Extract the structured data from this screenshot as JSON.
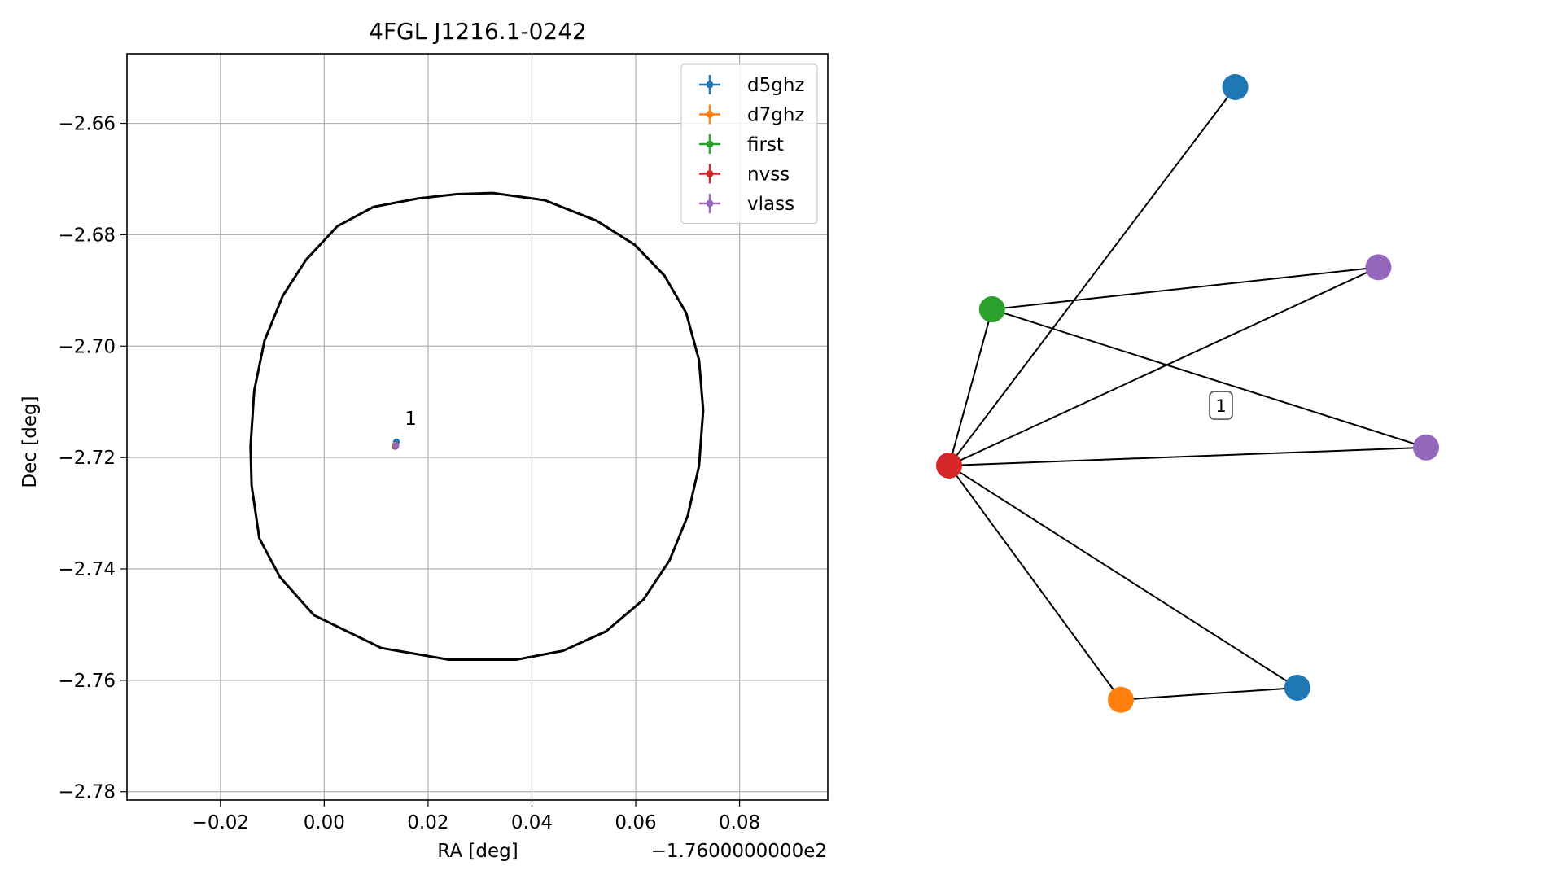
{
  "chart_data": [
    {
      "type": "scatter",
      "title": "4FGL J1216.1-0242",
      "xlabel": "RA [deg]",
      "ylabel": "Dec [deg]",
      "x_offset_label": "−1.7600000000e2",
      "xlim": [
        -0.038,
        0.097
      ],
      "ylim": [
        -2.7815,
        -2.6475
      ],
      "x_ticks": [
        -0.02,
        0.0,
        0.02,
        0.04,
        0.06,
        0.08
      ],
      "x_tick_labels": [
        "−0.02",
        "0.00",
        "0.02",
        "0.04",
        "0.06",
        "0.08"
      ],
      "y_ticks": [
        -2.66,
        -2.68,
        -2.7,
        -2.72,
        -2.74,
        -2.76,
        -2.78
      ],
      "y_tick_labels": [
        "−2.66",
        "−2.68",
        "−2.70",
        "−2.72",
        "−2.74",
        "−2.76",
        "−2.78"
      ],
      "grid": true,
      "legend_position": "top-right",
      "series": [
        {
          "name": "d5ghz",
          "color": "#1f77b4",
          "points": [
            [
              0.0139,
              -2.7172
            ]
          ]
        },
        {
          "name": "d7ghz",
          "color": "#ff7f0e",
          "points": [
            [
              0.0137,
              -2.7178
            ]
          ]
        },
        {
          "name": "first",
          "color": "#2ca02c",
          "points": [
            [
              0.0136,
              -2.718
            ]
          ]
        },
        {
          "name": "nvss",
          "color": "#d62728",
          "points": [
            [
              0.0137,
              -2.718
            ]
          ]
        },
        {
          "name": "vlass",
          "color": "#9467bd",
          "points": [
            [
              0.0138,
              -2.7179
            ]
          ]
        }
      ],
      "annotations": [
        {
          "text": "1",
          "x": 0.0155,
          "y": -2.715
        }
      ],
      "ellipse": {
        "color": "#000000",
        "points": [
          [
            0.0325,
            -2.6725
          ],
          [
            0.0425,
            -2.6738
          ],
          [
            0.0525,
            -2.6775
          ],
          [
            0.0598,
            -2.6818
          ],
          [
            0.0655,
            -2.6873
          ],
          [
            0.0697,
            -2.694
          ],
          [
            0.0722,
            -2.7025
          ],
          [
            0.073,
            -2.7115
          ],
          [
            0.0722,
            -2.7215
          ],
          [
            0.07,
            -2.7305
          ],
          [
            0.0665,
            -2.7385
          ],
          [
            0.0615,
            -2.7455
          ],
          [
            0.0543,
            -2.7512
          ],
          [
            0.046,
            -2.7547
          ],
          [
            0.037,
            -2.7563
          ],
          [
            0.024,
            -2.7563
          ],
          [
            0.011,
            -2.7542
          ],
          [
            -0.002,
            -2.7483
          ],
          [
            -0.0085,
            -2.7415
          ],
          [
            -0.0125,
            -2.7345
          ],
          [
            -0.014,
            -2.725
          ],
          [
            -0.0142,
            -2.718
          ],
          [
            -0.0135,
            -2.708
          ],
          [
            -0.0115,
            -2.699
          ],
          [
            -0.008,
            -2.691
          ],
          [
            -0.0035,
            -2.6845
          ],
          [
            0.0025,
            -2.6785
          ],
          [
            0.0095,
            -2.675
          ],
          [
            0.018,
            -2.6735
          ],
          [
            0.0255,
            -2.6727
          ],
          [
            0.0325,
            -2.6725
          ]
        ]
      }
    },
    {
      "type": "network",
      "nodes": [
        {
          "id": "n1",
          "survey": "d5ghz",
          "color": "#1f77b4",
          "x": 0.6,
          "y": 1.0
        },
        {
          "id": "n2",
          "survey": "vlass",
          "color": "#9467bd",
          "x": 0.9,
          "y": 0.7
        },
        {
          "id": "n3",
          "survey": "first",
          "color": "#2ca02c",
          "x": 0.09,
          "y": 0.63
        },
        {
          "id": "n4",
          "survey": "vlass",
          "color": "#9467bd",
          "x": 1.0,
          "y": 0.4
        },
        {
          "id": "n5",
          "survey": "nvss",
          "color": "#d62728",
          "x": 0.0,
          "y": 0.37
        },
        {
          "id": "n6",
          "survey": "d5ghz",
          "color": "#1f77b4",
          "x": 0.73,
          "y": 0.0
        },
        {
          "id": "n7",
          "survey": "d7ghz",
          "color": "#ff7f0e",
          "x": 0.36,
          "y": -0.02
        }
      ],
      "edges": [
        [
          "n5",
          "n1"
        ],
        [
          "n5",
          "n2"
        ],
        [
          "n5",
          "n3"
        ],
        [
          "n5",
          "n4"
        ],
        [
          "n5",
          "n6"
        ],
        [
          "n5",
          "n7"
        ],
        [
          "n3",
          "n2"
        ],
        [
          "n3",
          "n4"
        ],
        [
          "n7",
          "n6"
        ]
      ],
      "edge_label": {
        "text": "1",
        "x": 0.57,
        "y": 0.47
      }
    }
  ]
}
